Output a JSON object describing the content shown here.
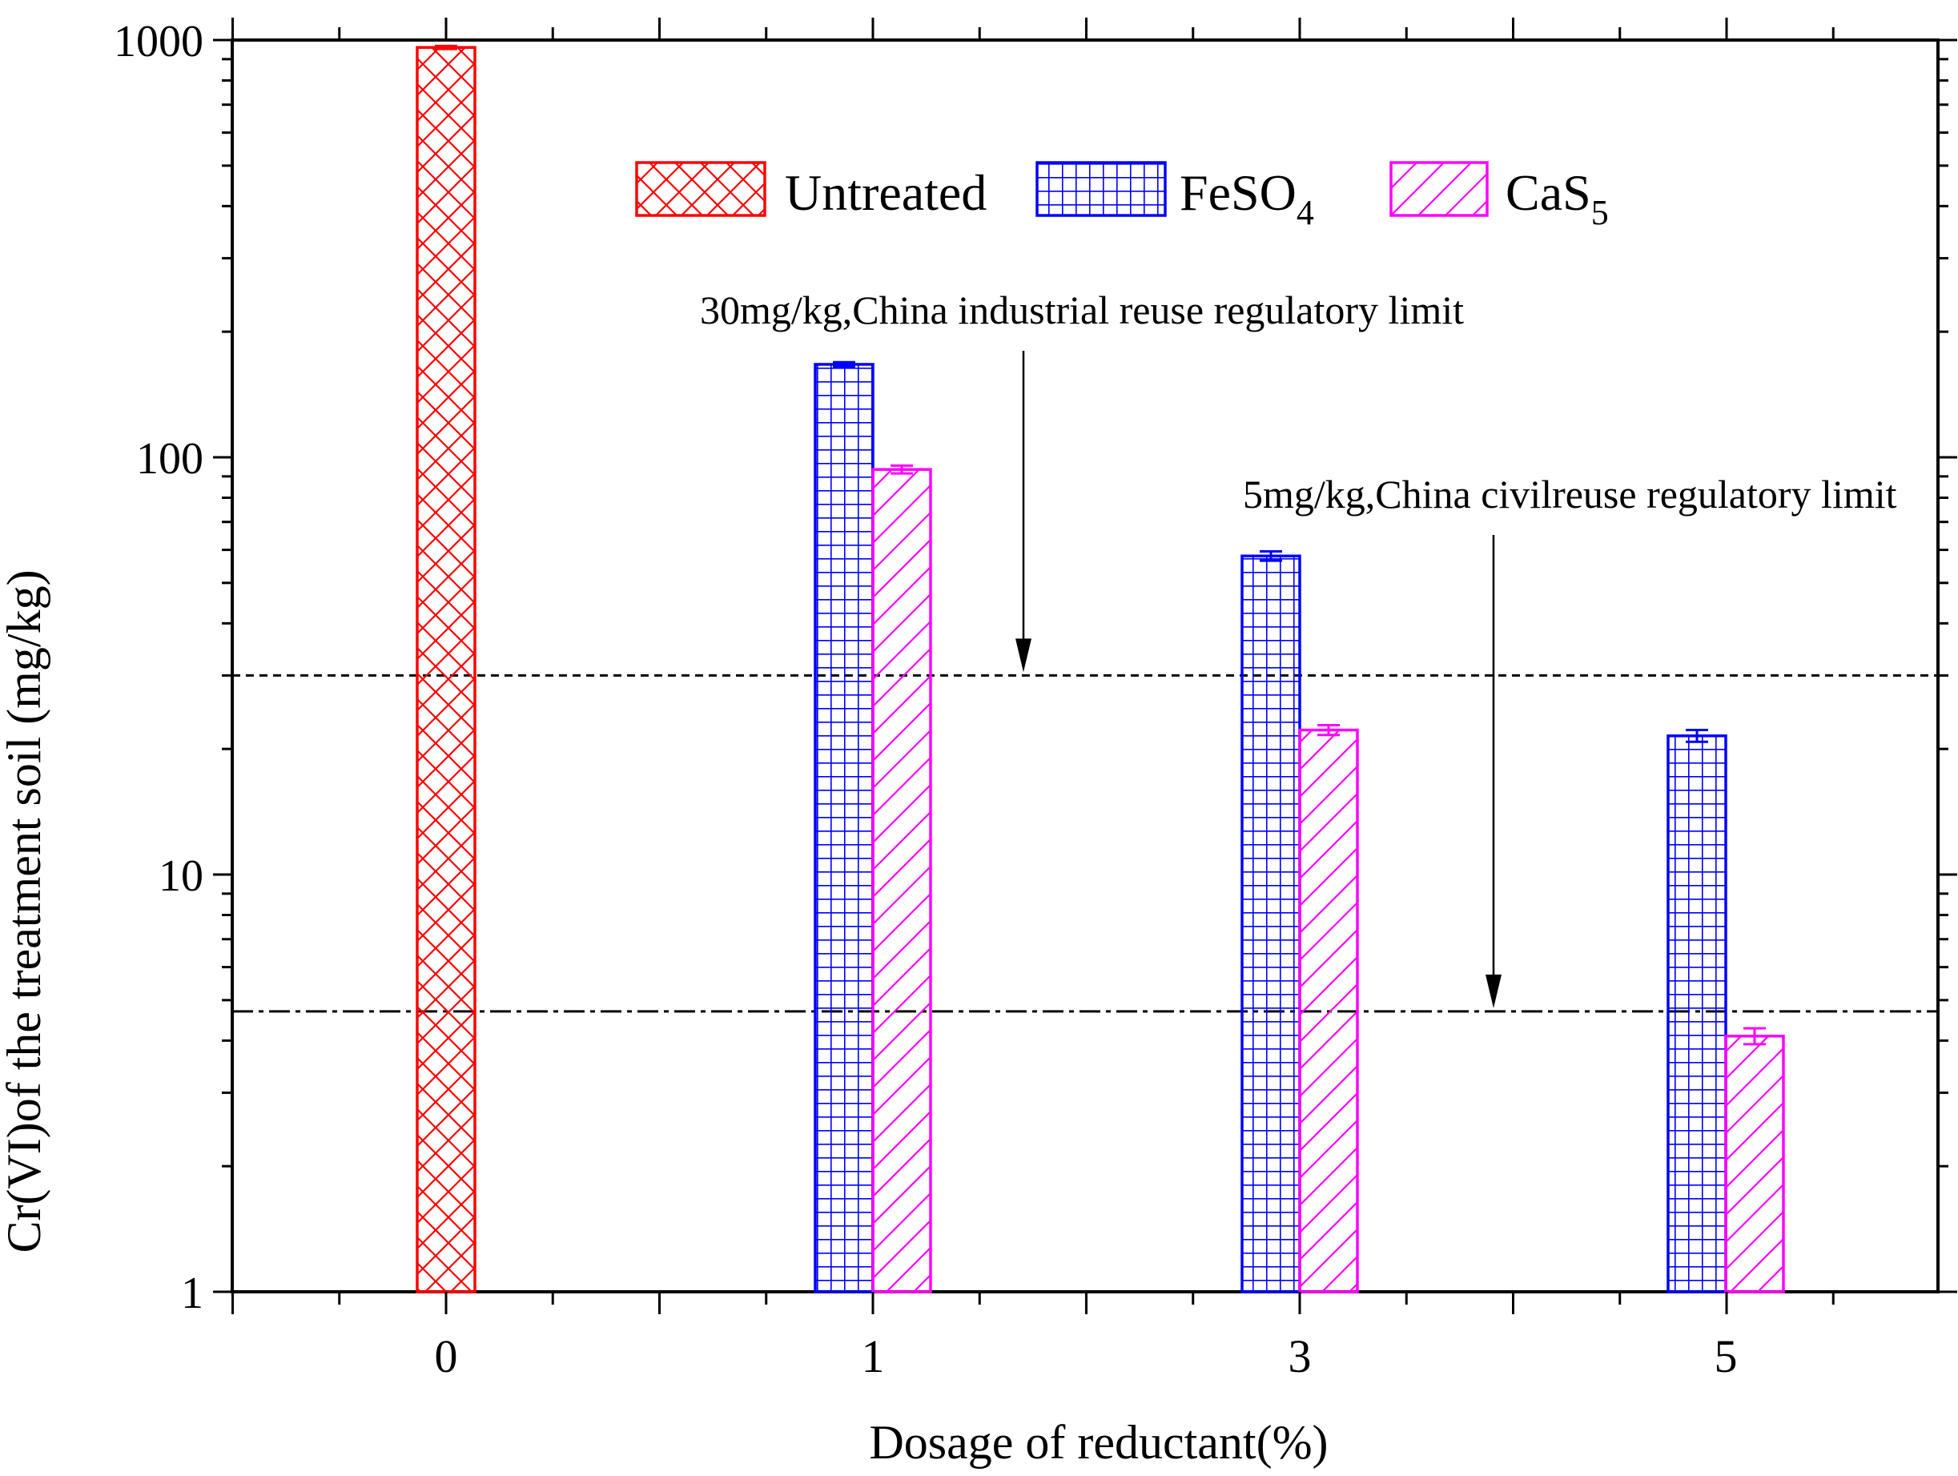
{
  "chart_data": {
    "type": "bar",
    "scale": "log",
    "title": "",
    "xlabel": "Dosage of reductant(%)",
    "ylabel": "Cr(VI)of the treatment soil (mg/kg)",
    "ylim": [
      1,
      1000
    ],
    "categories": [
      "0",
      "1",
      "3",
      "5"
    ],
    "yticks": [
      "1",
      "10",
      "100",
      "1000"
    ],
    "series": [
      {
        "name": "Untreated",
        "name_main": "Untreated",
        "name_sub": "",
        "color": "#ff0000",
        "pattern": "crosshatch",
        "values": [
          960,
          null,
          null,
          null
        ],
        "errors": [
          8,
          null,
          null,
          null
        ]
      },
      {
        "name": "FeSO4",
        "name_main": "FeSO",
        "name_sub": "4",
        "color": "#0000ff",
        "pattern": "grid",
        "values": [
          null,
          167,
          58,
          21.5
        ],
        "errors": [
          null,
          2,
          1.5,
          0.7
        ]
      },
      {
        "name": "CaS5",
        "name_main": "CaS",
        "name_sub": "5",
        "color": "#ff00ff",
        "pattern": "diagonal",
        "values": [
          null,
          93.5,
          22.2,
          4.1
        ],
        "errors": [
          null,
          2,
          0.6,
          0.18
        ]
      }
    ],
    "reference_lines": [
      {
        "value": 30,
        "style": "dashed",
        "label": "30mg/kg,China industrial reuse regulatory limit"
      },
      {
        "value": 4.7,
        "style": "dashdot",
        "label": "5mg/kg,China civilreuse regulatory limit"
      }
    ],
    "legend_position": "top-center"
  }
}
